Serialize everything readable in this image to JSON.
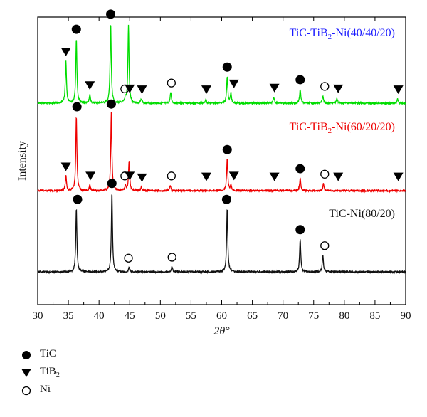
{
  "chart_data": {
    "type": "line",
    "xlabel": "2θ°",
    "ylabel": "Intensity",
    "xlim": [
      30,
      90
    ],
    "x_ticks": [
      30,
      35,
      40,
      45,
      50,
      55,
      60,
      65,
      70,
      75,
      80,
      85,
      90
    ],
    "y_ticks_shown": false,
    "grid": false,
    "legend_placement": "bottom-left",
    "legend": [
      {
        "name_main": "TiC",
        "name_sub": "",
        "marker": "filled-circle"
      },
      {
        "name_main": "TiB",
        "name_sub": "2",
        "marker": "filled-triangle-down"
      },
      {
        "name_main": "Ni",
        "name_sub": "",
        "marker": "open-circle"
      }
    ],
    "series": [
      {
        "name": "TiC-TiB2-Ni(40/40/20)",
        "label_main": "TiC-TiB",
        "label_sub": "2",
        "label_tail": "-Ni(40/40/20)",
        "color": "#00dd00",
        "label_color": "#1a1aff",
        "peaks": [
          {
            "x": 34.6,
            "height": 0.5,
            "phase": "TiB2"
          },
          {
            "x": 36.3,
            "height": 0.77,
            "phase": "TiC"
          },
          {
            "x": 38.5,
            "height": 0.1,
            "phase": "TiB2"
          },
          {
            "x": 41.9,
            "height": 0.95,
            "phase": "TiC"
          },
          {
            "x": 44.3,
            "height": 0.06,
            "phase": "Ni"
          },
          {
            "x": 44.8,
            "height": 0.92,
            "phase": "TiB2"
          },
          {
            "x": 46.9,
            "height": 0.05,
            "phase": "TiB2"
          },
          {
            "x": 51.7,
            "height": 0.13,
            "phase": "Ni"
          },
          {
            "x": 57.4,
            "height": 0.05,
            "phase": "TiB2"
          },
          {
            "x": 60.9,
            "height": 0.32,
            "phase": "TiC"
          },
          {
            "x": 61.5,
            "height": 0.12,
            "phase": "TiB2"
          },
          {
            "x": 68.5,
            "height": 0.07,
            "phase": "TiB2"
          },
          {
            "x": 72.8,
            "height": 0.17,
            "phase": "TiC"
          },
          {
            "x": 76.5,
            "height": 0.09,
            "phase": "Ni"
          },
          {
            "x": 78.8,
            "height": 0.06,
            "phase": "TiB2"
          },
          {
            "x": 88.7,
            "height": 0.05,
            "phase": "TiB2"
          }
        ],
        "markers": [
          {
            "x": 34.6,
            "phase": "TiB2"
          },
          {
            "x": 36.3,
            "phase": "TiC"
          },
          {
            "x": 38.5,
            "phase": "TiB2"
          },
          {
            "x": 41.9,
            "phase": "TiC"
          },
          {
            "x": 44.2,
            "phase": "Ni"
          },
          {
            "x": 45.0,
            "phase": "TiB2"
          },
          {
            "x": 47.0,
            "phase": "TiB2"
          },
          {
            "x": 51.8,
            "phase": "Ni"
          },
          {
            "x": 57.5,
            "phase": "TiB2"
          },
          {
            "x": 60.9,
            "phase": "TiC"
          },
          {
            "x": 62.0,
            "phase": "TiB2"
          },
          {
            "x": 68.6,
            "phase": "TiB2"
          },
          {
            "x": 72.8,
            "phase": "TiC"
          },
          {
            "x": 76.8,
            "phase": "Ni"
          },
          {
            "x": 79.0,
            "phase": "TiB2"
          },
          {
            "x": 88.8,
            "phase": "TiB2"
          }
        ]
      },
      {
        "name": "TiC-TiB2-Ni(60/20/20)",
        "label_main": "TiC-TiB",
        "label_sub": "2",
        "label_tail": "-Ni(60/20/20)",
        "color": "#ee0000",
        "label_color": "#ee0000",
        "peaks": [
          {
            "x": 34.6,
            "height": 0.16,
            "phase": "TiB2"
          },
          {
            "x": 36.3,
            "height": 0.82,
            "phase": "TiC"
          },
          {
            "x": 38.5,
            "height": 0.06,
            "phase": "TiB2"
          },
          {
            "x": 42.0,
            "height": 0.85,
            "phase": "TiC"
          },
          {
            "x": 44.3,
            "height": 0.06,
            "phase": "Ni"
          },
          {
            "x": 44.9,
            "height": 0.33,
            "phase": "TiB2"
          },
          {
            "x": 46.9,
            "height": 0.04,
            "phase": "TiB2"
          },
          {
            "x": 51.6,
            "height": 0.06,
            "phase": "Ni"
          },
          {
            "x": 60.9,
            "height": 0.35,
            "phase": "TiC"
          },
          {
            "x": 61.5,
            "height": 0.06,
            "phase": "TiB2"
          },
          {
            "x": 72.8,
            "height": 0.14,
            "phase": "TiC"
          },
          {
            "x": 76.6,
            "height": 0.08,
            "phase": "Ni"
          }
        ],
        "markers": [
          {
            "x": 34.6,
            "phase": "TiB2"
          },
          {
            "x": 36.4,
            "phase": "TiC"
          },
          {
            "x": 38.6,
            "phase": "TiB2"
          },
          {
            "x": 42.0,
            "phase": "TiC"
          },
          {
            "x": 44.2,
            "phase": "Ni"
          },
          {
            "x": 45.0,
            "phase": "TiB2"
          },
          {
            "x": 47.0,
            "phase": "TiB2"
          },
          {
            "x": 51.8,
            "phase": "Ni"
          },
          {
            "x": 57.5,
            "phase": "TiB2"
          },
          {
            "x": 60.9,
            "phase": "TiC"
          },
          {
            "x": 62.0,
            "phase": "TiB2"
          },
          {
            "x": 68.6,
            "phase": "TiB2"
          },
          {
            "x": 72.8,
            "phase": "TiC"
          },
          {
            "x": 76.8,
            "phase": "Ni"
          },
          {
            "x": 79.0,
            "phase": "TiB2"
          },
          {
            "x": 88.8,
            "phase": "TiB2"
          }
        ]
      },
      {
        "name": "TiC-Ni(80/20)",
        "label_main": "TiC-Ni(80/20)",
        "label_sub": "",
        "label_tail": "",
        "color": "#111111",
        "label_color": "#111111",
        "peaks": [
          {
            "x": 36.3,
            "height": 0.71,
            "phase": "TiC"
          },
          {
            "x": 42.1,
            "height": 0.89,
            "phase": "TiC"
          },
          {
            "x": 44.9,
            "height": 0.05,
            "phase": "Ni"
          },
          {
            "x": 51.9,
            "height": 0.06,
            "phase": "Ni"
          },
          {
            "x": 60.9,
            "height": 0.71,
            "phase": "TiC"
          },
          {
            "x": 72.8,
            "height": 0.37,
            "phase": "TiC"
          },
          {
            "x": 76.5,
            "height": 0.19,
            "phase": "Ni"
          }
        ],
        "markers": [
          {
            "x": 36.5,
            "phase": "TiC"
          },
          {
            "x": 42.1,
            "phase": "TiC"
          },
          {
            "x": 44.8,
            "phase": "Ni"
          },
          {
            "x": 51.9,
            "phase": "Ni"
          },
          {
            "x": 60.8,
            "phase": "TiC"
          },
          {
            "x": 72.8,
            "phase": "TiC"
          },
          {
            "x": 76.8,
            "phase": "Ni"
          }
        ]
      }
    ]
  }
}
